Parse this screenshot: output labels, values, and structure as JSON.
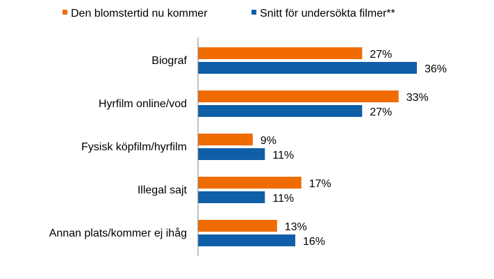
{
  "chart_data": {
    "type": "bar",
    "orientation": "horizontal",
    "categories": [
      "Biograf",
      "Hyrfilm online/vod",
      "Fysisk köpfilm/hyrfilm",
      "Illegal sajt",
      "Annan plats/kommer ej ihåg"
    ],
    "series": [
      {
        "name": "Den blomstertid nu kommer",
        "color": "#f06c00",
        "values": [
          27,
          33,
          9,
          17,
          13
        ],
        "labels": [
          "27%",
          "33%",
          "9%",
          "17%",
          "13%"
        ]
      },
      {
        "name": "Snitt för undersökta filmer**",
        "color": "#0f5fa8",
        "values": [
          36,
          27,
          11,
          11,
          16
        ],
        "labels": [
          "36%",
          "27%",
          "11%",
          "11%",
          "16%"
        ]
      }
    ],
    "value_unit": "%",
    "xlim": [
      0,
      40
    ],
    "legend_position": "top",
    "grid": false,
    "title": "",
    "xlabel": "",
    "ylabel": ""
  }
}
